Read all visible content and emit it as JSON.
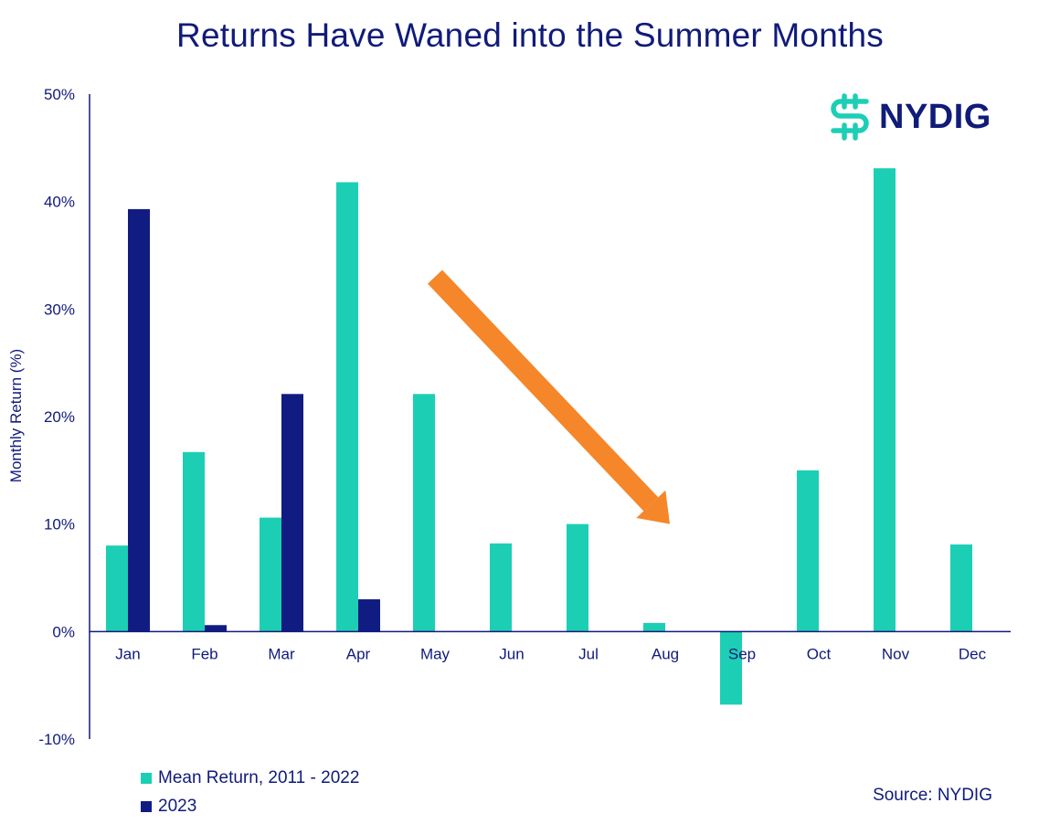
{
  "colors": {
    "mean": "#1CCFB4",
    "year2023": "#111C83",
    "arrow": "#F5862A",
    "text": "#101B7A"
  },
  "brand": {
    "name": "NYDIG",
    "icon": "nydig-logo-icon"
  },
  "footer": {
    "source": "Source: NYDIG"
  },
  "chart_data": {
    "type": "bar",
    "title": "Returns Have Waned into the Summer Months",
    "xlabel": "",
    "ylabel": "Monthly Return (%)",
    "ylim": [
      -10,
      50
    ],
    "yticks": [
      -10,
      0,
      10,
      20,
      30,
      40,
      50
    ],
    "ytick_labels": [
      "-10%",
      "0%",
      "10%",
      "20%",
      "30%",
      "40%",
      "50%"
    ],
    "categories": [
      "Jan",
      "Feb",
      "Mar",
      "Apr",
      "May",
      "Jun",
      "Jul",
      "Aug",
      "Sep",
      "Oct",
      "Nov",
      "Dec"
    ],
    "series": [
      {
        "name": "Mean Return, 2011 - 2022",
        "values": [
          8.0,
          16.7,
          10.6,
          41.8,
          22.1,
          8.2,
          10.0,
          0.8,
          -6.8,
          15.0,
          43.1,
          8.1
        ]
      },
      {
        "name": "2023",
        "values": [
          39.3,
          0.6,
          22.1,
          3.0,
          null,
          null,
          null,
          null,
          null,
          null,
          null,
          null
        ]
      }
    ],
    "annotations": [
      {
        "type": "arrow",
        "from": {
          "category": "May",
          "value": 33
        },
        "to": {
          "category": "Aug",
          "value": 10
        }
      }
    ],
    "grid": false,
    "legend_position": "bottom-left"
  }
}
